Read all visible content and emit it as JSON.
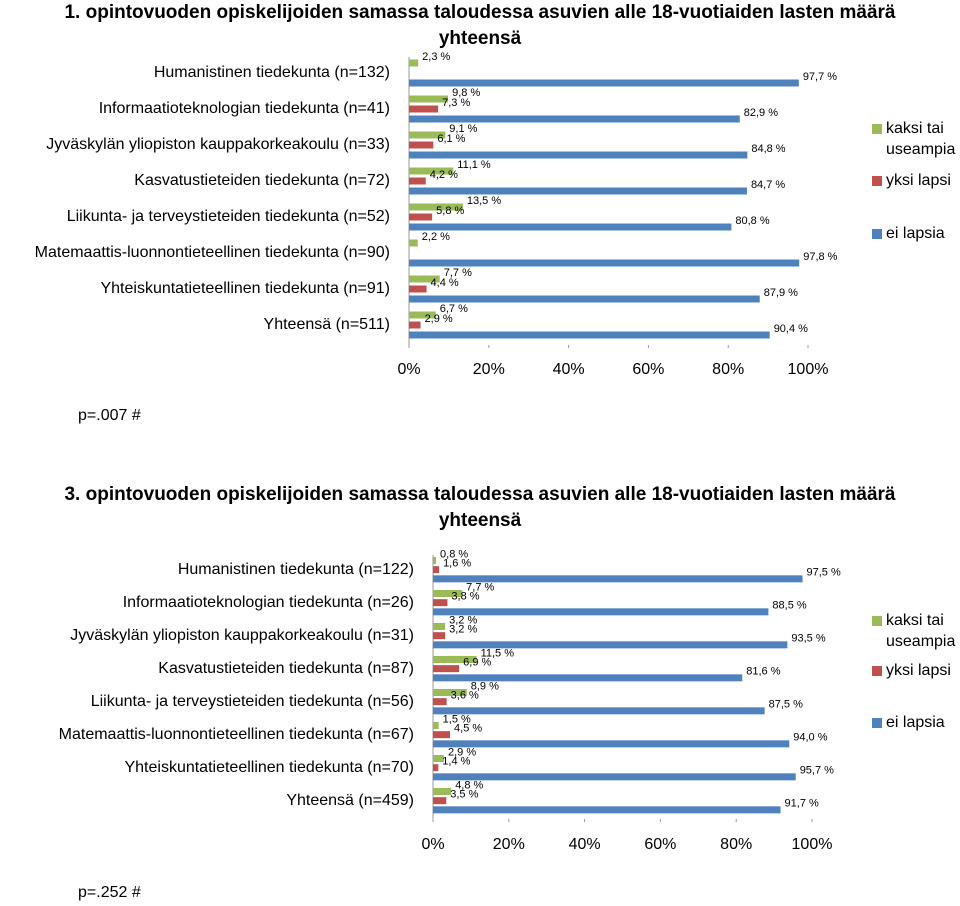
{
  "chart_data": [
    {
      "type": "bar",
      "orientation": "horizontal",
      "title": "1. opintovuoden opiskelijoiden samassa taloudessa asuvien alle 18-vuotiaiden lasten määrä yhteensä",
      "note": "p=.007 #",
      "categories": [
        "Humanistinen tiedekunta (n=132)",
        "Informaatioteknologian tiedekunta (n=41)",
        "Jyväskylän yliopiston kauppakorkeakoulu (n=33)",
        "Kasvatustieteiden tiedekunta (n=72)",
        "Liikunta- ja terveystieteiden tiedekunta (n=52)",
        "Matemaattis-luonnontieteellinen tiedekunta (n=90)",
        "Yhteiskuntatieteellinen tiedekunta (n=91)",
        "Yhteensä (n=511)"
      ],
      "series": [
        {
          "name": "kaksi tai useampia",
          "color": "#9bbb59",
          "values": [
            2.3,
            9.8,
            9.1,
            11.1,
            13.5,
            2.2,
            7.7,
            6.7
          ],
          "value_labels": [
            "2,3 %",
            "9,8 %",
            "9,1 %",
            "11,1 %",
            "13,5 %",
            "2,2 %",
            "7,7 %",
            "6,7 %"
          ]
        },
        {
          "name": "yksi lapsi",
          "color": "#c0504d",
          "values": [
            null,
            7.3,
            6.1,
            4.2,
            5.8,
            null,
            4.4,
            2.9
          ],
          "value_labels": [
            null,
            "7,3 %",
            "6,1 %",
            "4,2 %",
            "5,8 %",
            null,
            "4,4 %",
            "2,9 %"
          ]
        },
        {
          "name": "ei lapsia",
          "color": "#4f81bd",
          "values": [
            97.7,
            82.9,
            84.8,
            84.7,
            80.8,
            97.8,
            87.9,
            90.4
          ],
          "value_labels": [
            "97,7 %",
            "82,9 %",
            "84,8 %",
            "84,7 %",
            "80,8 %",
            "97,8 %",
            "87,9 %",
            "90,4 %"
          ]
        }
      ],
      "xlim": [
        0,
        100
      ],
      "xticks": [
        {
          "value": 0,
          "label": "0%"
        },
        {
          "value": 20,
          "label": "20%"
        },
        {
          "value": 40,
          "label": "40%"
        },
        {
          "value": 60,
          "label": "60%"
        },
        {
          "value": 80,
          "label": "80%"
        },
        {
          "value": 100,
          "label": "100%"
        }
      ],
      "legend": "right"
    },
    {
      "type": "bar",
      "orientation": "horizontal",
      "title": "3. opintovuoden opiskelijoiden samassa taloudessa asuvien alle 18-vuotiaiden lasten määrä yhteensä",
      "note": "p=.252 #",
      "categories": [
        "Humanistinen tiedekunta (n=122)",
        "Informaatioteknologian tiedekunta (n=26)",
        "Jyväskylän yliopiston kauppakorkeakoulu (n=31)",
        "Kasvatustieteiden tiedekunta (n=87)",
        "Liikunta- ja terveystieteiden tiedekunta (n=56)",
        "Matemaattis-luonnontieteellinen tiedekunta (n=67)",
        "Yhteiskuntatieteellinen tiedekunta (n=70)",
        "Yhteensä (n=459)"
      ],
      "series": [
        {
          "name": "kaksi tai useampia",
          "color": "#9bbb59",
          "values": [
            0.8,
            7.7,
            3.2,
            11.5,
            8.9,
            1.5,
            2.9,
            4.8
          ],
          "value_labels": [
            "0,8 %",
            "7,7 %",
            "3,2 %",
            "11,5 %",
            "8,9 %",
            "1,5 %",
            "2,9 %",
            "4,8 %"
          ]
        },
        {
          "name": "yksi lapsi",
          "color": "#c0504d",
          "values": [
            1.6,
            3.8,
            3.2,
            6.9,
            3.6,
            4.5,
            1.4,
            3.5
          ],
          "value_labels": [
            "1,6 %",
            "3,8 %",
            "3,2 %",
            "6,9 %",
            "3,6 %",
            "4,5 %",
            "1,4 %",
            "3,5 %"
          ]
        },
        {
          "name": "ei lapsia",
          "color": "#4f81bd",
          "values": [
            97.5,
            88.5,
            93.5,
            81.6,
            87.5,
            94.0,
            95.7,
            91.7
          ],
          "value_labels": [
            "97,5 %",
            "88,5 %",
            "93,5 %",
            "81,6 %",
            "87,5 %",
            "94,0 %",
            "95,7 %",
            "91,7 %"
          ]
        }
      ],
      "xlim": [
        0,
        100
      ],
      "xticks": [
        {
          "value": 0,
          "label": "0%"
        },
        {
          "value": 20,
          "label": "20%"
        },
        {
          "value": 40,
          "label": "40%"
        },
        {
          "value": 60,
          "label": "60%"
        },
        {
          "value": 80,
          "label": "80%"
        },
        {
          "value": 100,
          "label": "100%"
        }
      ],
      "legend": "right"
    }
  ]
}
